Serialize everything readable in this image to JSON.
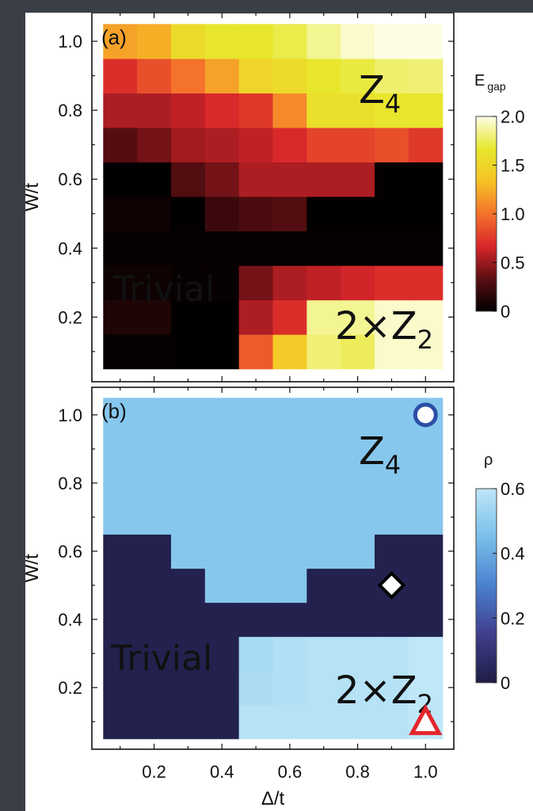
{
  "chart_data": [
    {
      "type": "heatmap",
      "panel_label": "(a)",
      "xlabel": "Δ/t",
      "ylabel": "W/t",
      "x_centers": [
        0.1,
        0.2,
        0.3,
        0.4,
        0.5,
        0.6,
        0.7,
        0.8,
        0.9,
        1.0
      ],
      "y_centers": [
        0.1,
        0.2,
        0.3,
        0.4,
        0.5,
        0.6,
        0.7,
        0.8,
        0.9,
        1.0
      ],
      "xlim": [
        0.04,
        1.06
      ],
      "ylim": [
        0.04,
        1.06
      ],
      "xticks": [
        "0.2",
        "0.4",
        "0.6",
        "0.8",
        "1.0"
      ],
      "yticks": [
        "0.2",
        "0.4",
        "0.6",
        "0.8",
        "1.0"
      ],
      "colorbar": {
        "title": "E",
        "title_sub": "gap",
        "ticks": [
          "0",
          "0.5",
          "1.0",
          "1.5",
          "2.0"
        ],
        "range": [
          0,
          2.0
        ],
        "colormap": [
          "#000000",
          "#5a0e12",
          "#d8262a",
          "#f4722b",
          "#f6c226",
          "#e7e82c",
          "#fdfde6"
        ]
      },
      "annotations": [
        {
          "text": "Z",
          "sub": "4",
          "pos": "top-right"
        },
        {
          "text": "Trivial",
          "pos": "bottom-left"
        },
        {
          "text": "2×Z",
          "sub": "2",
          "pos": "bottom-right"
        }
      ],
      "values": [
        [
          0.02,
          0.02,
          0.01,
          0.01,
          0.9,
          1.4,
          1.8,
          1.75,
          1.95,
          1.95
        ],
        [
          0.12,
          0.12,
          0.01,
          0.01,
          0.55,
          0.7,
          1.85,
          1.85,
          1.95,
          1.95
        ],
        [
          0.05,
          0.05,
          0.03,
          0.03,
          0.4,
          0.55,
          0.6,
          0.65,
          0.7,
          0.7
        ],
        [
          0.03,
          0.03,
          0.03,
          0.03,
          0.02,
          0.02,
          0.02,
          0.02,
          0.02,
          0.02
        ],
        [
          0.05,
          0.05,
          0.01,
          0.22,
          0.28,
          0.3,
          0.01,
          0.01,
          0.01,
          0.01
        ],
        [
          0.01,
          0.01,
          0.3,
          0.4,
          0.55,
          0.55,
          0.55,
          0.55,
          0.01,
          0.01
        ],
        [
          0.32,
          0.4,
          0.52,
          0.55,
          0.6,
          0.68,
          0.8,
          0.8,
          0.85,
          0.75
        ],
        [
          0.55,
          0.55,
          0.6,
          0.68,
          0.75,
          1.1,
          1.6,
          1.6,
          1.65,
          1.65
        ],
        [
          0.7,
          0.85,
          1.0,
          1.2,
          1.5,
          1.55,
          1.65,
          1.7,
          1.78,
          1.8
        ],
        [
          1.2,
          1.25,
          1.55,
          1.65,
          1.65,
          1.72,
          1.85,
          1.95,
          2.0,
          2.0
        ]
      ]
    },
    {
      "type": "heatmap",
      "panel_label": "(b)",
      "xlabel": "Δ/t",
      "ylabel": "W/t",
      "x_centers": [
        0.1,
        0.2,
        0.3,
        0.4,
        0.5,
        0.6,
        0.7,
        0.8,
        0.9,
        1.0
      ],
      "y_centers": [
        0.1,
        0.2,
        0.3,
        0.4,
        0.5,
        0.6,
        0.7,
        0.8,
        0.9,
        1.0
      ],
      "xlim": [
        0.04,
        1.06
      ],
      "ylim": [
        0.04,
        1.06
      ],
      "xticks": [
        "0.2",
        "0.4",
        "0.6",
        "0.8",
        "1.0"
      ],
      "yticks": [
        "0.2",
        "0.4",
        "0.6",
        "0.8",
        "1.0"
      ],
      "colorbar": {
        "title": "ρ",
        "ticks": [
          "0",
          "0.2",
          "0.4",
          "0.6"
        ],
        "range": [
          0,
          0.6
        ],
        "colormap": [
          "#1f1d45",
          "#3f3e8c",
          "#4b80cf",
          "#78bfea",
          "#bfe7f8"
        ]
      },
      "annotations": [
        {
          "text": "Z",
          "sub": "4",
          "pos": "top-right"
        },
        {
          "text": "Trivial",
          "pos": "bottom-left"
        },
        {
          "text": "2×Z",
          "sub": "2",
          "pos": "bottom-right"
        }
      ],
      "markers": [
        {
          "shape": "circle",
          "x": 1.0,
          "y": 1.0,
          "color": "#2b4fa6"
        },
        {
          "shape": "diamond",
          "x": 0.9,
          "y": 0.5,
          "color": "#000000"
        },
        {
          "shape": "triangle",
          "x": 1.0,
          "y": 0.1,
          "color": "#e3262c"
        }
      ],
      "values": [
        [
          0.02,
          0.02,
          0.02,
          0.02,
          0.58,
          0.58,
          0.58,
          0.58,
          0.58,
          0.6
        ],
        [
          0.02,
          0.02,
          0.02,
          0.02,
          0.56,
          0.57,
          0.58,
          0.58,
          0.58,
          0.6
        ],
        [
          0.02,
          0.02,
          0.02,
          0.02,
          0.55,
          0.57,
          0.58,
          0.58,
          0.58,
          0.6
        ],
        [
          0.02,
          0.02,
          0.02,
          0.02,
          0.02,
          0.02,
          0.02,
          0.02,
          0.02,
          0.02
        ],
        [
          0.02,
          0.02,
          0.02,
          0.48,
          0.48,
          0.48,
          0.02,
          0.02,
          0.02,
          0.02
        ],
        [
          0.02,
          0.02,
          0.48,
          0.48,
          0.48,
          0.48,
          0.48,
          0.48,
          0.02,
          0.02
        ],
        [
          0.48,
          0.48,
          0.48,
          0.48,
          0.48,
          0.48,
          0.48,
          0.48,
          0.48,
          0.48
        ],
        [
          0.48,
          0.48,
          0.48,
          0.48,
          0.48,
          0.48,
          0.48,
          0.48,
          0.48,
          0.48
        ],
        [
          0.48,
          0.48,
          0.48,
          0.48,
          0.48,
          0.48,
          0.48,
          0.48,
          0.48,
          0.48
        ],
        [
          0.48,
          0.48,
          0.48,
          0.48,
          0.48,
          0.48,
          0.48,
          0.48,
          0.48,
          0.48
        ]
      ]
    }
  ]
}
